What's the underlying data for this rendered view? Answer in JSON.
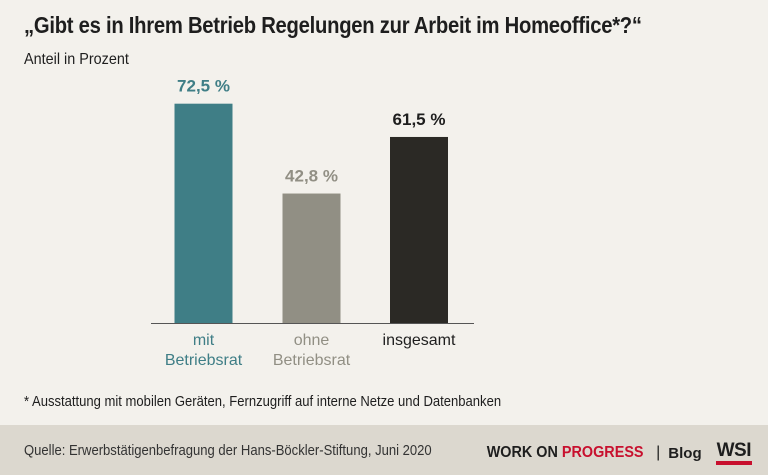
{
  "header": {
    "title": "„Gibt es in Ihrem Betrieb Regelungen zur Arbeit im Homeoffice*?“",
    "subtitle": "Anteil in Prozent"
  },
  "chart_data": {
    "type": "bar",
    "categories": [
      [
        "mit",
        "Betriebsrat"
      ],
      [
        "ohne",
        "Betriebsrat"
      ],
      [
        "insgesamt"
      ]
    ],
    "values": [
      72.5,
      42.8,
      61.5
    ],
    "value_labels": [
      "72,5 %",
      "42,8 %",
      "61,5 %"
    ],
    "colors": [
      "#3f7e86",
      "#918f84",
      "#2b2925"
    ],
    "label_colors": [
      "#3f7e86",
      "#918f84",
      "#1e1e1e"
    ],
    "ylim": [
      0,
      100
    ],
    "grid": false
  },
  "footnote": "* Ausstattung mit mobilen Geräten, Fernzugriff auf interne Netze und Datenbanken",
  "footer": {
    "source": "Quelle: Erwerbstätigenbefragung der Hans-Böckler-Stiftung, Juni 2020",
    "brand_work_on": "WORK ON ",
    "brand_progress": "PROGRESS",
    "brand_separator": "|",
    "brand_blog": "Blog",
    "brand_logo": "WSI"
  }
}
